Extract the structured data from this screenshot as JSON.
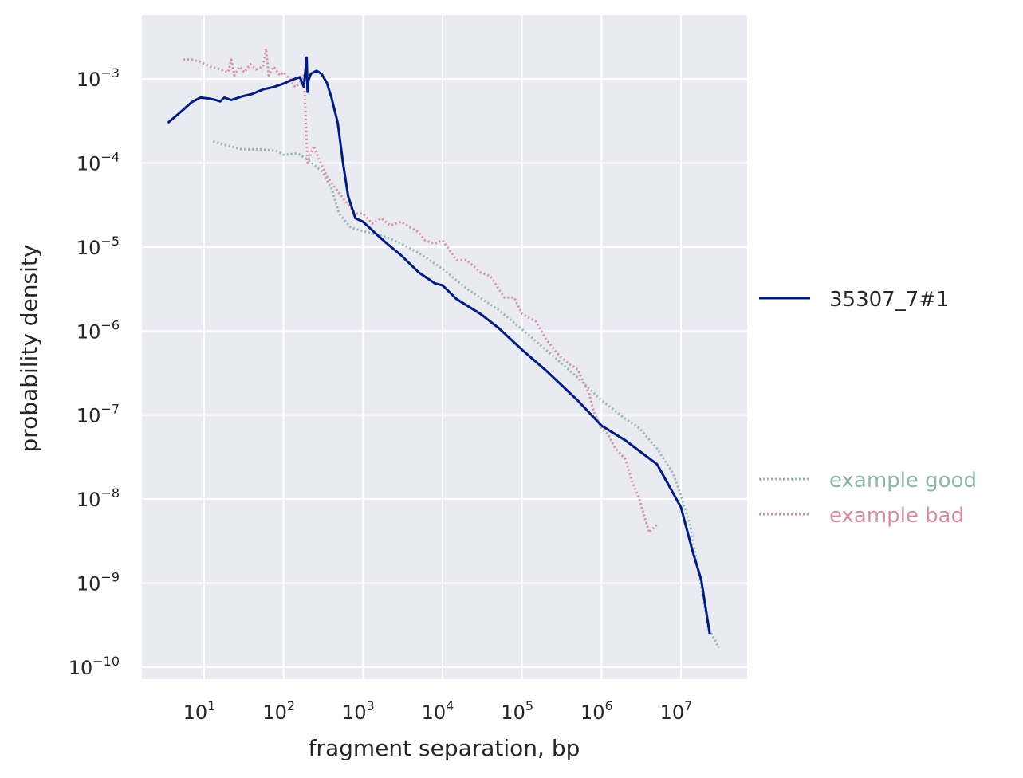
{
  "chart_data": {
    "type": "line",
    "xlabel": "fragment separation, bp",
    "ylabel": "probability density",
    "x_scale": "log",
    "y_scale": "log",
    "xlim": [
      1.5,
      60000000
    ],
    "ylim": [
      6e-11,
      0.006
    ],
    "grid": true,
    "x_ticks": [
      {
        "base": "10",
        "exp": "1",
        "value": 10
      },
      {
        "base": "10",
        "exp": "2",
        "value": 100
      },
      {
        "base": "10",
        "exp": "3",
        "value": 1000
      },
      {
        "base": "10",
        "exp": "4",
        "value": 10000
      },
      {
        "base": "10",
        "exp": "5",
        "value": 100000
      },
      {
        "base": "10",
        "exp": "6",
        "value": 1000000
      },
      {
        "base": "10",
        "exp": "7",
        "value": 10000000
      }
    ],
    "y_ticks": [
      {
        "base": "10",
        "exp": "−3",
        "value": 0.001
      },
      {
        "base": "10",
        "exp": "−4",
        "value": 0.0001
      },
      {
        "base": "10",
        "exp": "−5",
        "value": 1e-05
      },
      {
        "base": "10",
        "exp": "−6",
        "value": 1e-06
      },
      {
        "base": "10",
        "exp": "−7",
        "value": 1e-07
      },
      {
        "base": "10",
        "exp": "−8",
        "value": 1e-08
      },
      {
        "base": "10",
        "exp": "−9",
        "value": 1e-09
      },
      {
        "base": "10",
        "exp": "−10",
        "value": 1e-10
      }
    ],
    "series": [
      {
        "name": "35307_7#1",
        "color": "#001c7f",
        "style": "solid",
        "x": [
          3.5,
          5,
          7,
          9,
          12,
          14,
          16,
          18,
          22,
          30,
          40,
          55,
          75,
          100,
          130,
          160,
          180,
          195,
          200,
          205,
          220,
          260,
          300,
          350,
          400,
          480,
          560,
          650,
          800,
          1000,
          1500,
          2000,
          3000,
          5000,
          8000,
          10000,
          15000,
          30000,
          50000,
          100000,
          200000,
          500000,
          1000000,
          2000000,
          5000000,
          10000000,
          14000000,
          18000000,
          23000000
        ],
        "y": [
          0.0003,
          0.0004,
          0.00053,
          0.0006,
          0.00058,
          0.00056,
          0.00054,
          0.0006,
          0.00056,
          0.00062,
          0.00066,
          0.00075,
          0.0008,
          0.00088,
          0.00098,
          0.00105,
          0.0008,
          0.0018,
          0.0007,
          0.00095,
          0.00115,
          0.00125,
          0.00115,
          0.0009,
          0.0006,
          0.0003,
          0.0001,
          4e-05,
          2.2e-05,
          2e-05,
          1.4e-05,
          1.1e-05,
          8e-06,
          5e-06,
          3.7e-06,
          3.5e-06,
          2.4e-06,
          1.6e-06,
          1.1e-06,
          6e-07,
          3.4e-07,
          1.5e-07,
          7.5e-08,
          5e-08,
          2.6e-08,
          8e-09,
          2.4e-09,
          1.1e-09,
          2.5e-10
        ]
      },
      {
        "name": "example good",
        "color": "#8fb5ae",
        "style": "dotted",
        "x": [
          13,
          20,
          30,
          50,
          80,
          100,
          150,
          200,
          300,
          400,
          500,
          700,
          1000,
          1500,
          2000,
          3000,
          5000,
          10000,
          20000,
          50000,
          100000,
          200000,
          500000,
          1000000,
          2000000,
          3000000,
          5000000,
          8000000,
          10000000,
          13000000,
          17000000,
          22000000,
          30000000
        ],
        "y": [
          0.00018,
          0.00016,
          0.000145,
          0.000145,
          0.00014,
          0.000125,
          0.00013,
          0.00011,
          8e-05,
          5e-05,
          2.5e-05,
          1.7e-05,
          1.55e-05,
          1.4e-05,
          1.3e-05,
          1.1e-05,
          8.5e-06,
          5.5e-06,
          3.2e-06,
          1.8e-06,
          1.05e-06,
          6e-07,
          2.8e-07,
          1.5e-07,
          9e-08,
          7e-08,
          4e-08,
          2e-08,
          1.1e-08,
          5e-09,
          1.2e-09,
          3e-10,
          1.7e-10
        ]
      },
      {
        "name": "example bad",
        "color": "#d48ca7",
        "style": "dotted",
        "x": [
          5.5,
          7,
          9,
          12,
          16,
          20,
          22,
          24,
          28,
          32,
          38,
          45,
          55,
          60,
          65,
          75,
          90,
          100,
          120,
          140,
          160,
          180,
          200,
          240,
          280,
          350,
          450,
          600,
          800,
          1000,
          1300,
          1700,
          2200,
          3000,
          4000,
          5000,
          6000,
          8000,
          10000,
          15000,
          20000,
          30000,
          40000,
          60000,
          80000,
          100000,
          150000,
          200000,
          300000,
          400000,
          500000,
          700000,
          800000,
          1000000,
          1200000,
          1500000,
          2000000,
          2500000,
          3000000,
          3500000,
          4000000,
          5000000
        ],
        "y": [
          0.0017,
          0.0017,
          0.0016,
          0.0014,
          0.0013,
          0.0012,
          0.0017,
          0.0011,
          0.0014,
          0.0012,
          0.0015,
          0.0013,
          0.0014,
          0.0023,
          0.0011,
          0.0014,
          0.0011,
          0.0012,
          0.001,
          0.0008,
          0.0009,
          0.0011,
          0.0001,
          0.00016,
          0.00011,
          7e-05,
          5e-05,
          3.5e-05,
          2.5e-05,
          2.5e-05,
          1.9e-05,
          2.2e-05,
          1.8e-05,
          2e-05,
          1.7e-05,
          1.5e-05,
          1.2e-05,
          1.1e-05,
          1.2e-05,
          7e-06,
          7e-06,
          5e-06,
          4.5e-06,
          2.5e-06,
          2.5e-06,
          1.6e-06,
          1.3e-06,
          8e-07,
          5e-07,
          4e-07,
          3.5e-07,
          1.8e-07,
          1.1e-07,
          7e-08,
          6e-08,
          4e-08,
          3e-08,
          1.5e-08,
          1e-08,
          6e-09,
          4e-09,
          5e-09
        ]
      }
    ],
    "legend": [
      {
        "label": "35307_7#1",
        "color": "#001c7f",
        "style": "solid",
        "text_color": "#262626"
      },
      {
        "label": "example good",
        "color": "#8fb5ae",
        "style": "dotted",
        "text_color": "#8fb5ae"
      },
      {
        "label": "example bad",
        "color": "#d48ca7",
        "style": "dotted",
        "text_color": "#d48ca7"
      }
    ],
    "legend_placement": "outside right",
    "colors": {
      "plot_background": "#eaeaf2",
      "grid": "#ffffff",
      "text": "#262626"
    }
  }
}
